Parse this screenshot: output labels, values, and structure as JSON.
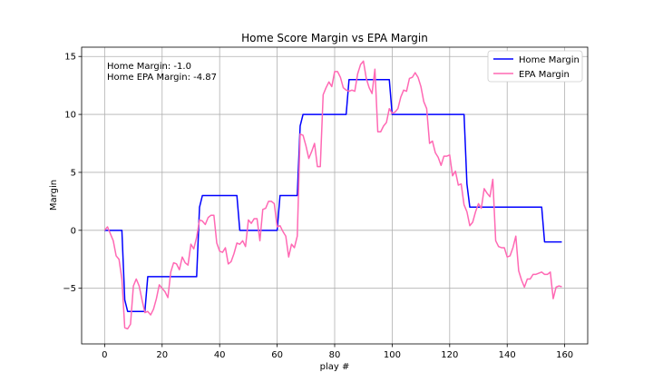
{
  "chart_data": {
    "type": "line",
    "title": "Home Score Margin vs EPA Margin",
    "xlabel": "play #",
    "ylabel": "Margin",
    "xlim": [
      -8,
      168
    ],
    "ylim": [
      -9.8,
      15.8
    ],
    "xticks": [
      0,
      20,
      40,
      60,
      80,
      100,
      120,
      140,
      160
    ],
    "yticks": [
      -5,
      0,
      5,
      10,
      15
    ],
    "grid": true,
    "legend_position": "top-right",
    "annotations": [
      "Home Margin: -1.0",
      "Home EPA Margin: -4.87"
    ],
    "series": [
      {
        "name": "Home Margin",
        "color": "#0000ff",
        "points": [
          [
            0,
            0
          ],
          [
            6,
            0
          ],
          [
            7,
            -6
          ],
          [
            8,
            -7
          ],
          [
            14,
            -7
          ],
          [
            15,
            -4
          ],
          [
            32,
            -4
          ],
          [
            33,
            2
          ],
          [
            34,
            3
          ],
          [
            46,
            3
          ],
          [
            47,
            0
          ],
          [
            60,
            0
          ],
          [
            61,
            3
          ],
          [
            67,
            3
          ],
          [
            68,
            9
          ],
          [
            69,
            10
          ],
          [
            84,
            10
          ],
          [
            85,
            13
          ],
          [
            99,
            13
          ],
          [
            100,
            10
          ],
          [
            125,
            10
          ],
          [
            126,
            4
          ],
          [
            127,
            2
          ],
          [
            152,
            2
          ],
          [
            153,
            -1
          ],
          [
            159,
            -1
          ]
        ]
      },
      {
        "name": "EPA Margin",
        "color": "#ff69b4",
        "points": [
          [
            0,
            0
          ],
          [
            1,
            0.3
          ],
          [
            2,
            -0.3
          ],
          [
            3,
            -0.9
          ],
          [
            4,
            -2.2
          ],
          [
            5,
            -2.5
          ],
          [
            6,
            -4.2
          ],
          [
            7,
            -8.4
          ],
          [
            8,
            -8.5
          ],
          [
            9,
            -8.1
          ],
          [
            10,
            -4.8
          ],
          [
            11,
            -4.2
          ],
          [
            12,
            -4.8
          ],
          [
            13,
            -6
          ],
          [
            14,
            -7.1
          ],
          [
            15,
            -7
          ],
          [
            16,
            -7.3
          ],
          [
            17,
            -6.8
          ],
          [
            18,
            -5.9
          ],
          [
            19,
            -4.7
          ],
          [
            20,
            -5
          ],
          [
            21,
            -5.3
          ],
          [
            22,
            -5.8
          ],
          [
            23,
            -3.6
          ],
          [
            24,
            -2.8
          ],
          [
            25,
            -2.9
          ],
          [
            26,
            -3.4
          ],
          [
            27,
            -2.3
          ],
          [
            28,
            -2.8
          ],
          [
            29,
            -3
          ],
          [
            30,
            -1.2
          ],
          [
            31,
            -1.6
          ],
          [
            32,
            -0.6
          ],
          [
            33,
            0.9
          ],
          [
            34,
            0.8
          ],
          [
            35,
            0.5
          ],
          [
            36,
            1.1
          ],
          [
            37,
            1.3
          ],
          [
            38,
            1.3
          ],
          [
            39,
            -1.1
          ],
          [
            40,
            -1.8
          ],
          [
            41,
            -1.9
          ],
          [
            42,
            -1.5
          ],
          [
            43,
            -2.9
          ],
          [
            44,
            -2.7
          ],
          [
            45,
            -2
          ],
          [
            46,
            -1.1
          ],
          [
            47,
            -1.2
          ],
          [
            48,
            -0.9
          ],
          [
            49,
            -1.4
          ],
          [
            50,
            0.9
          ],
          [
            51,
            0.6
          ],
          [
            52,
            1
          ],
          [
            53,
            1
          ],
          [
            54,
            -0.9
          ],
          [
            55,
            1.8
          ],
          [
            56,
            1.9
          ],
          [
            57,
            2.5
          ],
          [
            58,
            2.5
          ],
          [
            59,
            2.3
          ],
          [
            60,
            0.3
          ],
          [
            61,
            0.4
          ],
          [
            62,
            -0.1
          ],
          [
            63,
            -0.5
          ],
          [
            64,
            -2.3
          ],
          [
            65,
            -1.2
          ],
          [
            66,
            -1.5
          ],
          [
            67,
            -0.5
          ],
          [
            68,
            8.3
          ],
          [
            69,
            8.2
          ],
          [
            70,
            7.3
          ],
          [
            71,
            6.2
          ],
          [
            72,
            6.8
          ],
          [
            73,
            7.5
          ],
          [
            74,
            5.5
          ],
          [
            75,
            5.5
          ],
          [
            76,
            11.7
          ],
          [
            77,
            12.3
          ],
          [
            78,
            12.8
          ],
          [
            79,
            12.4
          ],
          [
            80,
            13.7
          ],
          [
            81,
            13.7
          ],
          [
            82,
            13.2
          ],
          [
            83,
            12.3
          ],
          [
            84,
            12.1
          ],
          [
            85,
            12
          ],
          [
            86,
            12.1
          ],
          [
            87,
            12
          ],
          [
            88,
            13.5
          ],
          [
            89,
            14.3
          ],
          [
            90,
            14.6
          ],
          [
            91,
            13.1
          ],
          [
            92,
            12.3
          ],
          [
            93,
            11.8
          ],
          [
            94,
            13.9
          ],
          [
            95,
            8.5
          ],
          [
            96,
            8.5
          ],
          [
            97,
            9
          ],
          [
            98,
            9.3
          ],
          [
            99,
            10.5
          ],
          [
            100,
            10.1
          ],
          [
            101,
            10.2
          ],
          [
            102,
            10.5
          ],
          [
            103,
            11.5
          ],
          [
            104,
            12.1
          ],
          [
            105,
            12
          ],
          [
            106,
            13.1
          ],
          [
            107,
            13.2
          ],
          [
            108,
            13.6
          ],
          [
            109,
            13.2
          ],
          [
            110,
            12.4
          ],
          [
            111,
            11.1
          ],
          [
            112,
            10.5
          ],
          [
            113,
            7.5
          ],
          [
            114,
            7.7
          ],
          [
            115,
            6.7
          ],
          [
            116,
            6.3
          ],
          [
            117,
            5.6
          ],
          [
            118,
            6.4
          ],
          [
            119,
            6.4
          ],
          [
            120,
            6.5
          ],
          [
            121,
            4.7
          ],
          [
            122,
            5.1
          ],
          [
            123,
            3.9
          ],
          [
            124,
            4
          ],
          [
            125,
            2.2
          ],
          [
            126,
            1.6
          ],
          [
            127,
            0.4
          ],
          [
            128,
            0.7
          ],
          [
            129,
            1.6
          ],
          [
            130,
            2.3
          ],
          [
            131,
            1.9
          ],
          [
            132,
            3.6
          ],
          [
            133,
            3.2
          ],
          [
            134,
            2.9
          ],
          [
            135,
            4.4
          ],
          [
            136,
            -0.9
          ],
          [
            137,
            -1.4
          ],
          [
            138,
            -1.5
          ],
          [
            139,
            -1.5
          ],
          [
            140,
            -2.3
          ],
          [
            141,
            -2.2
          ],
          [
            142,
            -1.5
          ],
          [
            143,
            -0.5
          ],
          [
            144,
            -3.5
          ],
          [
            145,
            -4.3
          ],
          [
            146,
            -4.9
          ],
          [
            147,
            -4.2
          ],
          [
            148,
            -4.2
          ],
          [
            149,
            -3.8
          ],
          [
            150,
            -3.8
          ],
          [
            151,
            -3.7
          ],
          [
            152,
            -3.6
          ],
          [
            153,
            -3.8
          ],
          [
            154,
            -3.8
          ],
          [
            155,
            -3.6
          ],
          [
            156,
            -5.9
          ],
          [
            157,
            -4.9
          ],
          [
            158,
            -4.8
          ],
          [
            159,
            -4.87
          ]
        ]
      }
    ]
  }
}
